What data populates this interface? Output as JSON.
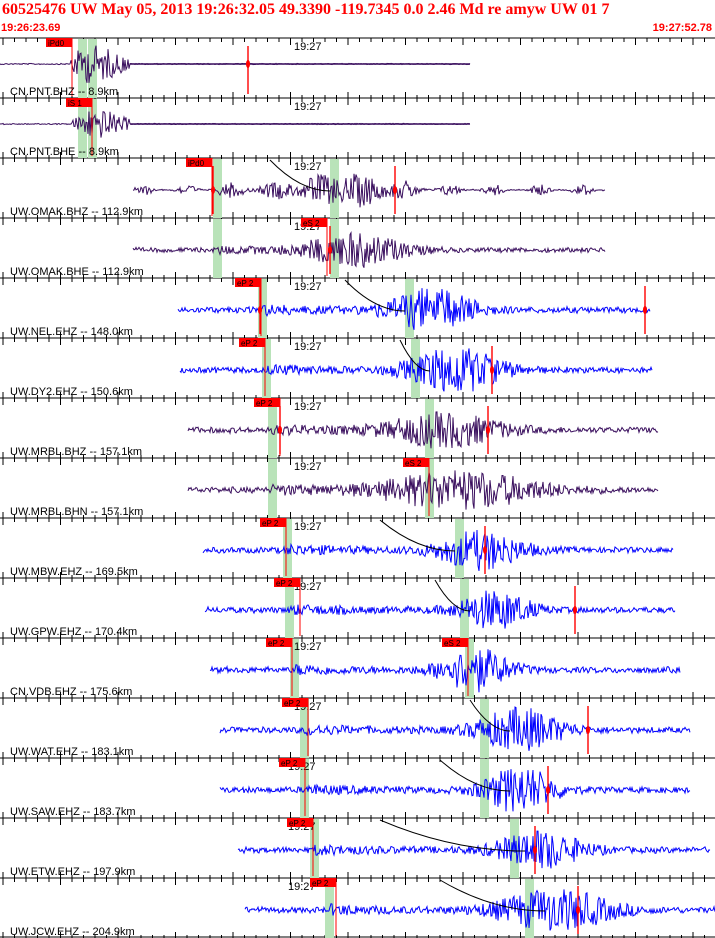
{
  "header": {
    "title": "60525476 UW May 05, 2013 19:26:32.05   49.3390 -119.7345  0.0 2.46 Md re amyw UW 01    7",
    "start_time": "19:26:23.69",
    "end_time": "19:27:52.78"
  },
  "time_marker": "19:27",
  "colors": {
    "header_text": "#ff0000",
    "trace_purple": "#3a0f5e",
    "trace_blue": "#0000ff",
    "pick_flag": "#ff0000",
    "window_band": "#b9e3b9",
    "axis": "#000000"
  },
  "traces": [
    {
      "label": "CN.PNT.BHZ -- 8.9km",
      "picks": [
        {
          "label": "iPd0"
        }
      ]
    },
    {
      "label": "CN.PNT.BHE -- 8.9km",
      "picks": [
        {
          "label": "iS 1"
        }
      ]
    },
    {
      "label": "UW.OMAK.BHZ -- 112.9km",
      "picks": [
        {
          "label": "iPd0"
        }
      ]
    },
    {
      "label": "UW.OMAK.BHE -- 112.9km",
      "picks": [
        {
          "label": "eS 2"
        }
      ]
    },
    {
      "label": "UW.NEL.EHZ -- 148.0km",
      "picks": [
        {
          "label": "eP 2"
        }
      ]
    },
    {
      "label": "UW.DY2.EHZ -- 150.6km",
      "picks": [
        {
          "label": "eP 2"
        }
      ]
    },
    {
      "label": "UW.MRBL.BHZ -- 157.1km",
      "picks": [
        {
          "label": "eP 2"
        }
      ]
    },
    {
      "label": "UW.MRBL.BHN -- 157.1km",
      "picks": [
        {
          "label": "eS 2"
        }
      ]
    },
    {
      "label": "UW.MBW.EHZ -- 169.5km",
      "picks": [
        {
          "label": "eP 2"
        }
      ]
    },
    {
      "label": "UW.GPW.EHZ -- 170.4km",
      "picks": [
        {
          "label": "eP 2"
        }
      ]
    },
    {
      "label": "CN.VDB.EHZ -- 175.6km",
      "picks": [
        {
          "label": "eP 2"
        },
        {
          "label": "eS 2"
        }
      ]
    },
    {
      "label": "UW.WAT.EHZ -- 183.1km",
      "picks": [
        {
          "label": "eP 2"
        }
      ]
    },
    {
      "label": "UW.SAW.EHZ -- 183.7km",
      "picks": [
        {
          "label": "eP 2"
        }
      ]
    },
    {
      "label": "UW.ETW.EHZ -- 197.9km",
      "picks": [
        {
          "label": "eP 2"
        }
      ]
    },
    {
      "label": "UW.JCW.EHZ -- 204.9km",
      "picks": [
        {
          "label": "eP 2"
        }
      ]
    }
  ]
}
